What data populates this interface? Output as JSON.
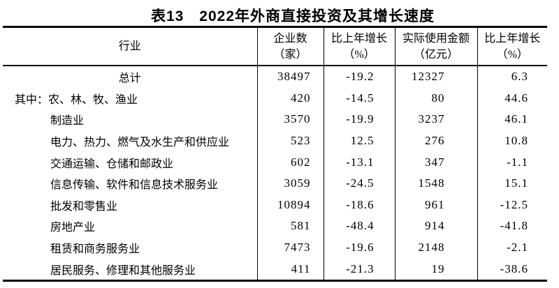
{
  "page": {
    "background": "#ffffff",
    "text_color": "#000000",
    "rule_color": "#000000"
  },
  "title": "表13　2022年外商直接投资及其增长速度",
  "table": {
    "columns": [
      {
        "line1": "行业",
        "line2": ""
      },
      {
        "line1": "企业数",
        "line2": "（家）"
      },
      {
        "line1": "比上年增长",
        "line2": "（%）"
      },
      {
        "line1": "实际使用金额",
        "line2": "（亿元）"
      },
      {
        "line1": "比上年增长",
        "line2": "（%）"
      }
    ],
    "rows": [
      {
        "industry": "总计",
        "enterprises": "38497",
        "enterprises_growth": "-19.2",
        "amount_used": "12327",
        "amount_growth": "6.3"
      },
      {
        "industry": "其中：农、林、牧、渔业",
        "enterprises": "420",
        "enterprises_growth": "-14.5",
        "amount_used": "80",
        "amount_growth": "44.6"
      },
      {
        "industry": "制造业",
        "enterprises": "3570",
        "enterprises_growth": "-19.9",
        "amount_used": "3237",
        "amount_growth": "46.1"
      },
      {
        "industry": "电力、热力、燃气及水生产和供应业",
        "enterprises": "523",
        "enterprises_growth": "12.5",
        "amount_used": "276",
        "amount_growth": "10.8"
      },
      {
        "industry": "交通运输、仓储和邮政业",
        "enterprises": "602",
        "enterprises_growth": "-13.1",
        "amount_used": "347",
        "amount_growth": "-1.1"
      },
      {
        "industry": "信息传输、软件和信息技术服务业",
        "enterprises": "3059",
        "enterprises_growth": "-24.5",
        "amount_used": "1548",
        "amount_growth": "15.1"
      },
      {
        "industry": "批发和零售业",
        "enterprises": "10894",
        "enterprises_growth": "-18.6",
        "amount_used": "961",
        "amount_growth": "-12.5"
      },
      {
        "industry": "房地产业",
        "enterprises": "581",
        "enterprises_growth": "-48.4",
        "amount_used": "914",
        "amount_growth": "-41.8"
      },
      {
        "industry": "租赁和商务服务业",
        "enterprises": "7473",
        "enterprises_growth": "-19.6",
        "amount_used": "2148",
        "amount_growth": "-2.1"
      },
      {
        "industry": "居民服务、修理和其他服务业",
        "enterprises": "411",
        "enterprises_growth": "-21.3",
        "amount_used": "19",
        "amount_growth": "-38.6"
      }
    ]
  },
  "chart_data": {
    "type": "table",
    "title": "表13　2022年外商直接投资及其增长速度",
    "columns": [
      "行业",
      "企业数（家）",
      "比上年增长（%）",
      "实际使用金额（亿元）",
      "比上年增长（%）"
    ],
    "rows": [
      [
        "总计",
        38497,
        -19.2,
        12327,
        6.3
      ],
      [
        "其中：农、林、牧、渔业",
        420,
        -14.5,
        80,
        44.6
      ],
      [
        "制造业",
        3570,
        -19.9,
        3237,
        46.1
      ],
      [
        "电力、热力、燃气及水生产和供应业",
        523,
        12.5,
        276,
        10.8
      ],
      [
        "交通运输、仓储和邮政业",
        602,
        -13.1,
        347,
        -1.1
      ],
      [
        "信息传输、软件和信息技术服务业",
        3059,
        -24.5,
        1548,
        15.1
      ],
      [
        "批发和零售业",
        10894,
        -18.6,
        961,
        -12.5
      ],
      [
        "房地产业",
        581,
        -48.4,
        914,
        -41.8
      ],
      [
        "租赁和商务服务业",
        7473,
        -19.6,
        2148,
        -2.1
      ],
      [
        "居民服务、修理和其他服务业",
        411,
        -21.3,
        19,
        -38.6
      ]
    ]
  }
}
